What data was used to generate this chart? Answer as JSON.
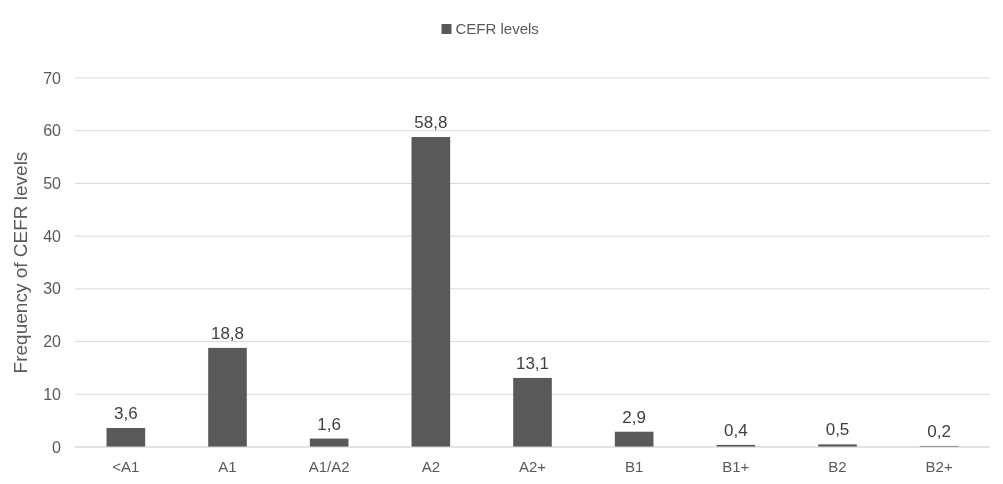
{
  "chart_data": {
    "type": "bar",
    "ylabel": "Frequency of CEFR levels",
    "categories": [
      "<A1",
      "A1",
      "A1/A2",
      "A2",
      "A2+",
      "B1",
      "B1+",
      "B2",
      "B2+"
    ],
    "series": [
      {
        "name": "CEFR levels",
        "color": "#595959",
        "values": [
          3.6,
          18.8,
          1.6,
          58.8,
          13.1,
          2.9,
          0.4,
          0.5,
          0.2
        ],
        "value_labels": [
          "3,6",
          "18,8",
          "1,6",
          "58,8",
          "13,1",
          "2,9",
          "0,4",
          "0,5",
          "0,2"
        ]
      }
    ],
    "ylim": [
      0,
      70
    ],
    "yticks": [
      0,
      10,
      20,
      30,
      40,
      50,
      60,
      70
    ],
    "grid": "y",
    "legend": "top"
  }
}
